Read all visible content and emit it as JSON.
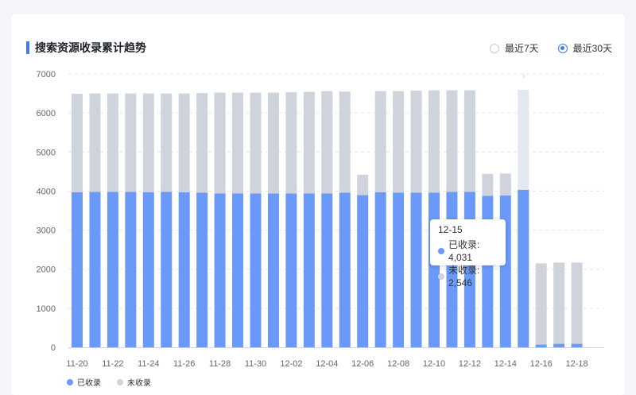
{
  "header": {
    "title": "搜索资源收录累计趋势"
  },
  "range_options": [
    {
      "label": "最近7天",
      "selected": false
    },
    {
      "label": "最近30天",
      "selected": true
    }
  ],
  "colors": {
    "indexed": "#6b99fa",
    "not_indexed": "#cfd3db",
    "hover_band": "#e3e8f1",
    "accent": "#3b7cf3"
  },
  "tooltip": {
    "date": "12-15",
    "rows": [
      {
        "label": "已收录: 4,031",
        "color": "#6b99fa"
      },
      {
        "label": "未收录: 2,546",
        "color": "#cfd3db"
      }
    ]
  },
  "legend": [
    {
      "label": "已收录",
      "color": "#6b99fa"
    },
    {
      "label": "未收录",
      "color": "#cfd3db"
    }
  ],
  "chart_data": {
    "type": "bar",
    "stacked": true,
    "categories": [
      "11-20",
      "11-21",
      "11-22",
      "11-23",
      "11-24",
      "11-25",
      "11-26",
      "11-27",
      "11-28",
      "11-29",
      "11-30",
      "12-01",
      "12-02",
      "12-03",
      "12-04",
      "12-05",
      "12-06",
      "12-07",
      "12-08",
      "12-09",
      "12-10",
      "12-11",
      "12-12",
      "12-13",
      "12-14",
      "12-15",
      "12-16",
      "12-17",
      "12-18"
    ],
    "x_tick_labels": [
      "11-20",
      "11-22",
      "11-24",
      "11-26",
      "11-28",
      "11-30",
      "12-02",
      "12-04",
      "12-06",
      "12-08",
      "12-10",
      "12-12",
      "12-14",
      "12-16",
      "12-18"
    ],
    "series": [
      {
        "name": "已收录",
        "color": "#6b99fa",
        "values": [
          3970,
          3980,
          3980,
          3980,
          3970,
          3980,
          3970,
          3960,
          3940,
          3940,
          3940,
          3940,
          3940,
          3940,
          3940,
          3960,
          3900,
          3970,
          3960,
          3960,
          3960,
          3980,
          3980,
          3880,
          3890,
          4031,
          70,
          90,
          90
        ]
      },
      {
        "name": "未收录",
        "color": "#cfd3db",
        "values": [
          2520,
          2520,
          2520,
          2520,
          2530,
          2520,
          2530,
          2550,
          2580,
          2580,
          2580,
          2580,
          2590,
          2600,
          2620,
          2590,
          520,
          2590,
          2600,
          2610,
          2620,
          2600,
          2600,
          560,
          560,
          2546,
          2080,
          2080,
          2080
        ]
      }
    ],
    "highlight_index": 25,
    "ylim": [
      0,
      7000
    ],
    "yticks": [
      0,
      1000,
      2000,
      3000,
      4000,
      5000,
      6000,
      7000
    ],
    "grid": true,
    "legend_position": "bottom-left"
  }
}
